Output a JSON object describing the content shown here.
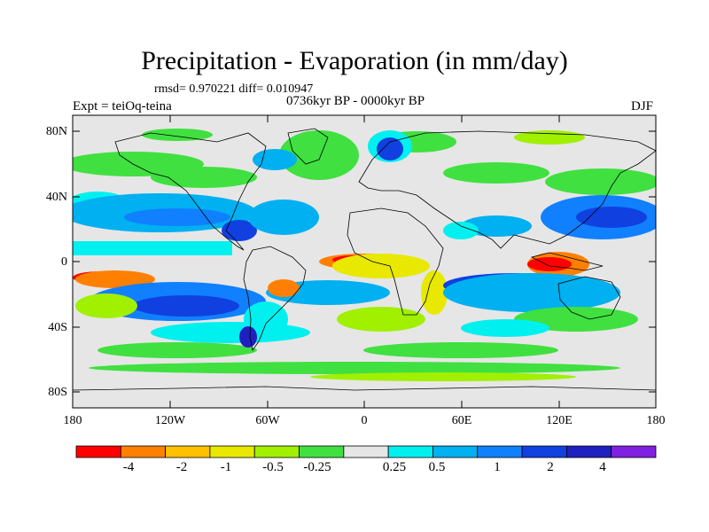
{
  "title": "Precipitation - Evaporation (in mm/day)",
  "stats": "rmsd= 0.970221 diff= 0.010947",
  "period": "0736kyr BP - 0000kyr BP",
  "experiment": "Expt = teiOq-teina",
  "season": "DJF",
  "lat_labels": [
    "80N",
    "40N",
    "0",
    "40S",
    "80S"
  ],
  "lon_labels": [
    "180",
    "120W",
    "60W",
    "0",
    "60E",
    "120E",
    "180"
  ],
  "colorbar": {
    "colors": [
      "#ff0000",
      "#ff8000",
      "#ffc000",
      "#e8e800",
      "#a0f000",
      "#40e040",
      "#e6e6e6",
      "#00f0f0",
      "#00b0f0",
      "#1080ff",
      "#1040e0",
      "#2020c0",
      "#8020e0"
    ],
    "labels": [
      "-4",
      "-2",
      "-1",
      "-0.5",
      "-0.25",
      "0.25",
      "0.5",
      "1",
      "2",
      "4"
    ]
  },
  "map_colors": {
    "neutral": "#e6e6e6",
    "green": "#40e040",
    "lime": "#a0f000",
    "yellow": "#e8e800",
    "orange": "#ff8000",
    "red": "#ff0000",
    "cyan": "#00f0f0",
    "sky": "#00b0f0",
    "blue": "#1080ff",
    "dblue": "#1040e0",
    "navy": "#2020c0"
  }
}
